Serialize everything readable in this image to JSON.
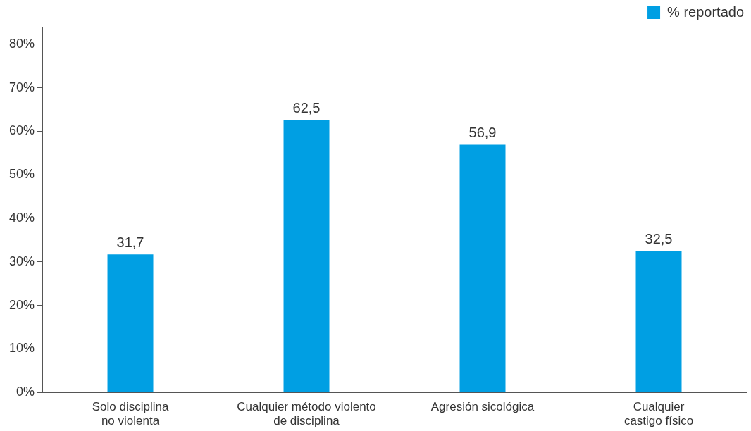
{
  "chart_data": {
    "type": "bar",
    "categories": [
      "Solo disciplina\nno violenta",
      "Cualquier método violento\nde disciplina",
      "Agresión sicológica",
      "Cualquier\ncastigo físico"
    ],
    "series": [
      {
        "name": "% reportado",
        "color": "#009fe3",
        "values": [
          31.7,
          62.5,
          56.9,
          32.5
        ],
        "value_labels": [
          "31,7",
          "62,5",
          "56,9",
          "32,5"
        ]
      }
    ],
    "ylim": [
      0,
      84
    ],
    "yticks": [
      {
        "value": 0,
        "label": "0%"
      },
      {
        "value": 10,
        "label": "10%"
      },
      {
        "value": 20,
        "label": "20%"
      },
      {
        "value": 30,
        "label": "30%"
      },
      {
        "value": 40,
        "label": "40%"
      },
      {
        "value": 50,
        "label": "50%"
      },
      {
        "value": 60,
        "label": "60%"
      },
      {
        "value": 70,
        "label": "70%"
      },
      {
        "value": 80,
        "label": "80%"
      }
    ],
    "grid": false,
    "legend": "top right"
  }
}
